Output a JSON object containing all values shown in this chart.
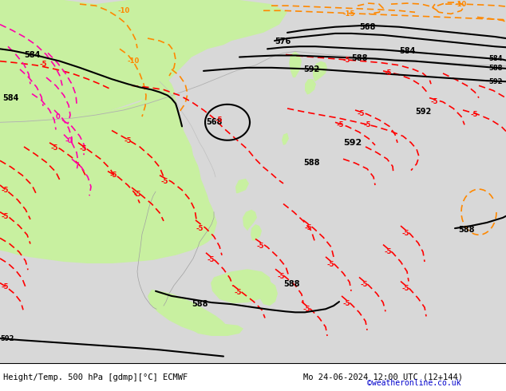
{
  "title_left": "Height/Temp. 500 hPa [gdmp][°C] ECMWF",
  "title_right": "Mo 24-06-2024 12:00 UTC (12+144)",
  "credit": "©weatheronline.co.uk",
  "fig_width": 6.34,
  "fig_height": 4.9,
  "dpi": 100,
  "credit_color": "#0000cc",
  "map_bg": "#d8d8d8",
  "land_green": "#c8f0a0",
  "sea_gray": "#d0d0d0",
  "coastline_color": "#a0a0a0",
  "border_color": "#b8b8b8",
  "contour_color": "#000000",
  "temp_orange": "#ff8800",
  "temp_red": "#ff0000",
  "temp_magenta": "#ff00aa",
  "contour_lw": 1.5,
  "temp_lw": 1.2,
  "label_fs": 7,
  "small_fs": 6
}
